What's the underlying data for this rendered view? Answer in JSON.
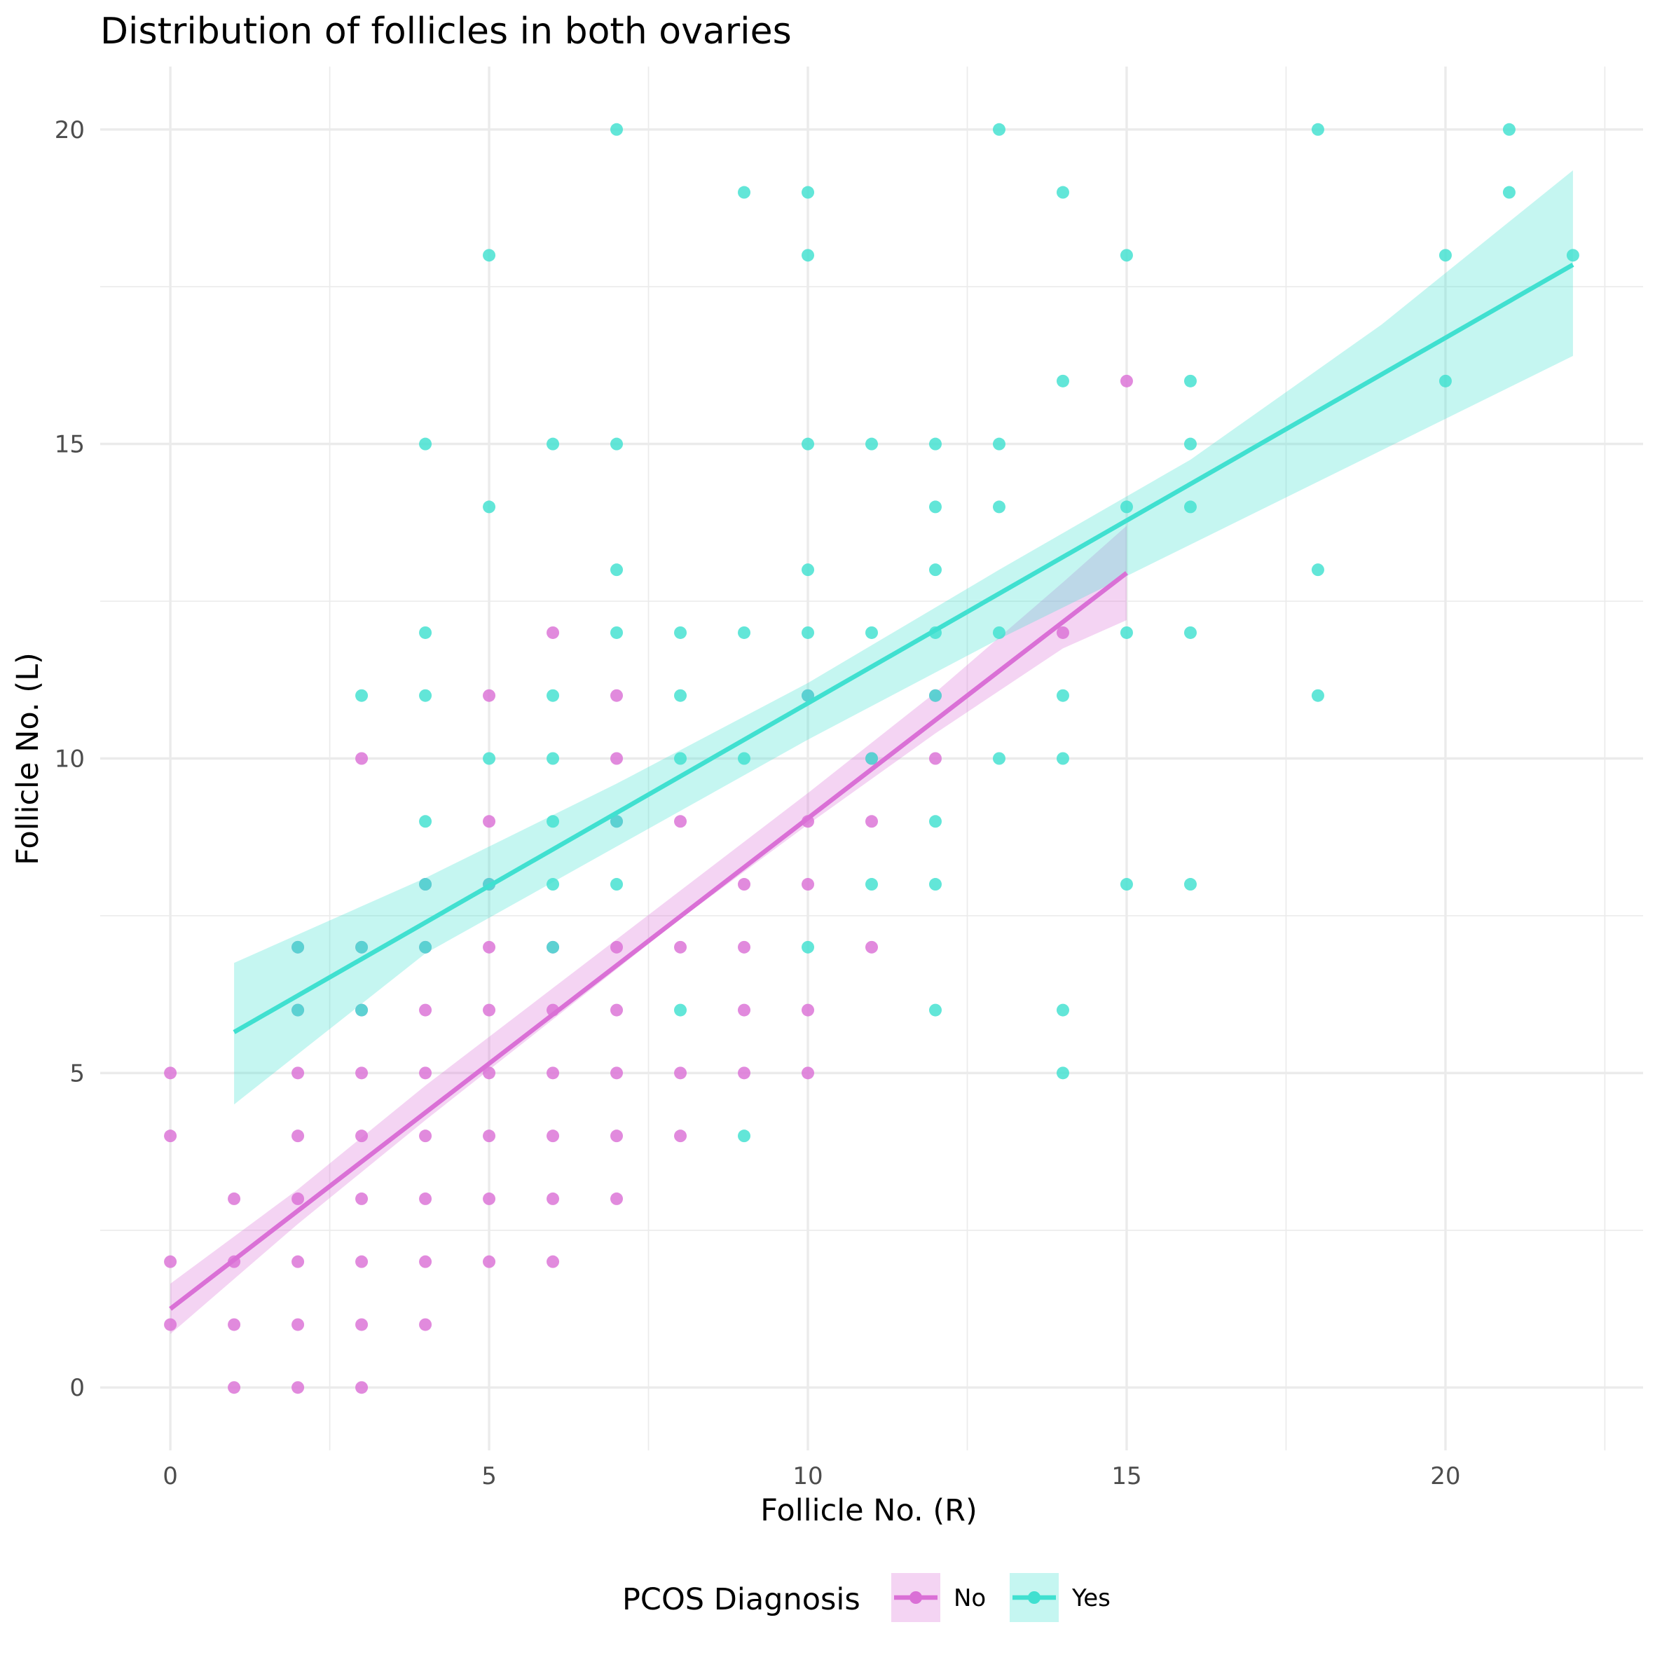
{
  "chart_data": {
    "type": "scatter",
    "title": "Distribution of follicles in both ovaries",
    "xlabel": "Follicle No. (R)",
    "ylabel": "Follicle No. (L)",
    "xlim": [
      -1.1,
      23.1
    ],
    "ylim": [
      -1.0,
      21.0
    ],
    "x_ticks": [
      0,
      5,
      10,
      15,
      20
    ],
    "y_ticks": [
      0,
      5,
      10,
      15,
      20
    ],
    "grid": true,
    "legend": {
      "title": "PCOS Diagnosis",
      "position": "bottom"
    },
    "series": [
      {
        "name": "No",
        "color": "#DA70D6",
        "points": [
          [
            0,
            1
          ],
          [
            0,
            2
          ],
          [
            0,
            4
          ],
          [
            0,
            5
          ],
          [
            1,
            0
          ],
          [
            1,
            1
          ],
          [
            1,
            2
          ],
          [
            1,
            3
          ],
          [
            2,
            0
          ],
          [
            2,
            1
          ],
          [
            2,
            2
          ],
          [
            2,
            3
          ],
          [
            2,
            4
          ],
          [
            2,
            5
          ],
          [
            2,
            6
          ],
          [
            2,
            7
          ],
          [
            3,
            0
          ],
          [
            3,
            1
          ],
          [
            3,
            2
          ],
          [
            3,
            3
          ],
          [
            3,
            4
          ],
          [
            3,
            5
          ],
          [
            3,
            6
          ],
          [
            3,
            7
          ],
          [
            3,
            10
          ],
          [
            4,
            1
          ],
          [
            4,
            2
          ],
          [
            4,
            3
          ],
          [
            4,
            4
          ],
          [
            4,
            5
          ],
          [
            4,
            6
          ],
          [
            4,
            7
          ],
          [
            4,
            8
          ],
          [
            5,
            2
          ],
          [
            5,
            3
          ],
          [
            5,
            4
          ],
          [
            5,
            5
          ],
          [
            5,
            6
          ],
          [
            5,
            7
          ],
          [
            5,
            8
          ],
          [
            5,
            9
          ],
          [
            5,
            11
          ],
          [
            6,
            2
          ],
          [
            6,
            3
          ],
          [
            6,
            4
          ],
          [
            6,
            5
          ],
          [
            6,
            6
          ],
          [
            6,
            7
          ],
          [
            6,
            12
          ],
          [
            7,
            3
          ],
          [
            7,
            4
          ],
          [
            7,
            5
          ],
          [
            7,
            6
          ],
          [
            7,
            7
          ],
          [
            7,
            9
          ],
          [
            7,
            10
          ],
          [
            7,
            11
          ],
          [
            8,
            4
          ],
          [
            8,
            5
          ],
          [
            8,
            7
          ],
          [
            8,
            9
          ],
          [
            9,
            5
          ],
          [
            9,
            6
          ],
          [
            9,
            7
          ],
          [
            9,
            8
          ],
          [
            10,
            5
          ],
          [
            10,
            6
          ],
          [
            10,
            8
          ],
          [
            10,
            9
          ],
          [
            10,
            11
          ],
          [
            11,
            7
          ],
          [
            11,
            9
          ],
          [
            11,
            10
          ],
          [
            12,
            10
          ],
          [
            12,
            11
          ],
          [
            14,
            12
          ],
          [
            15,
            16
          ]
        ],
        "fit": {
          "x": [
            0,
            15
          ],
          "y": [
            1.25,
            12.95
          ]
        },
        "band": {
          "x": [
            0,
            2,
            4,
            6,
            8,
            10,
            12,
            14,
            15
          ],
          "lower": [
            0.85,
            2.6,
            4.25,
            5.85,
            7.45,
            8.95,
            10.4,
            11.75,
            12.2
          ],
          "upper": [
            1.65,
            3.15,
            4.8,
            6.35,
            7.9,
            9.45,
            11.05,
            12.8,
            13.7
          ]
        }
      },
      {
        "name": "Yes",
        "color": "#40E0D0",
        "points": [
          [
            2,
            6
          ],
          [
            2,
            7
          ],
          [
            3,
            6
          ],
          [
            3,
            7
          ],
          [
            3,
            11
          ],
          [
            4,
            7
          ],
          [
            4,
            8
          ],
          [
            4,
            9
          ],
          [
            4,
            11
          ],
          [
            4,
            12
          ],
          [
            4,
            15
          ],
          [
            5,
            8
          ],
          [
            5,
            10
          ],
          [
            5,
            14
          ],
          [
            5,
            18
          ],
          [
            6,
            7
          ],
          [
            6,
            8
          ],
          [
            6,
            9
          ],
          [
            6,
            10
          ],
          [
            6,
            11
          ],
          [
            6,
            15
          ],
          [
            7,
            8
          ],
          [
            7,
            9
          ],
          [
            7,
            12
          ],
          [
            7,
            13
          ],
          [
            7,
            15
          ],
          [
            7,
            20
          ],
          [
            8,
            6
          ],
          [
            8,
            10
          ],
          [
            8,
            11
          ],
          [
            8,
            12
          ],
          [
            9,
            4
          ],
          [
            9,
            10
          ],
          [
            9,
            12
          ],
          [
            9,
            19
          ],
          [
            10,
            7
          ],
          [
            10,
            11
          ],
          [
            10,
            12
          ],
          [
            10,
            13
          ],
          [
            10,
            15
          ],
          [
            10,
            18
          ],
          [
            10,
            19
          ],
          [
            11,
            8
          ],
          [
            11,
            10
          ],
          [
            11,
            12
          ],
          [
            11,
            15
          ],
          [
            12,
            6
          ],
          [
            12,
            8
          ],
          [
            12,
            9
          ],
          [
            12,
            11
          ],
          [
            12,
            12
          ],
          [
            12,
            13
          ],
          [
            12,
            14
          ],
          [
            12,
            15
          ],
          [
            13,
            10
          ],
          [
            13,
            12
          ],
          [
            13,
            14
          ],
          [
            13,
            15
          ],
          [
            13,
            20
          ],
          [
            14,
            5
          ],
          [
            14,
            6
          ],
          [
            14,
            10
          ],
          [
            14,
            11
          ],
          [
            14,
            16
          ],
          [
            14,
            19
          ],
          [
            15,
            8
          ],
          [
            15,
            12
          ],
          [
            15,
            14
          ],
          [
            15,
            18
          ],
          [
            16,
            8
          ],
          [
            16,
            12
          ],
          [
            16,
            14
          ],
          [
            16,
            15
          ],
          [
            16,
            16
          ],
          [
            18,
            11
          ],
          [
            18,
            13
          ],
          [
            18,
            20
          ],
          [
            20,
            16
          ],
          [
            20,
            18
          ],
          [
            21,
            19
          ],
          [
            21,
            20
          ],
          [
            22,
            18
          ]
        ],
        "fit": {
          "x": [
            1,
            22
          ],
          "y": [
            5.65,
            17.85
          ]
        },
        "band": {
          "x": [
            1,
            4,
            7,
            10,
            13,
            16,
            19,
            22
          ],
          "lower": [
            4.5,
            6.9,
            8.6,
            10.3,
            11.9,
            13.4,
            14.9,
            16.4
          ],
          "upper": [
            6.75,
            8.1,
            9.6,
            11.2,
            13.0,
            14.75,
            16.9,
            19.35
          ]
        }
      }
    ]
  }
}
